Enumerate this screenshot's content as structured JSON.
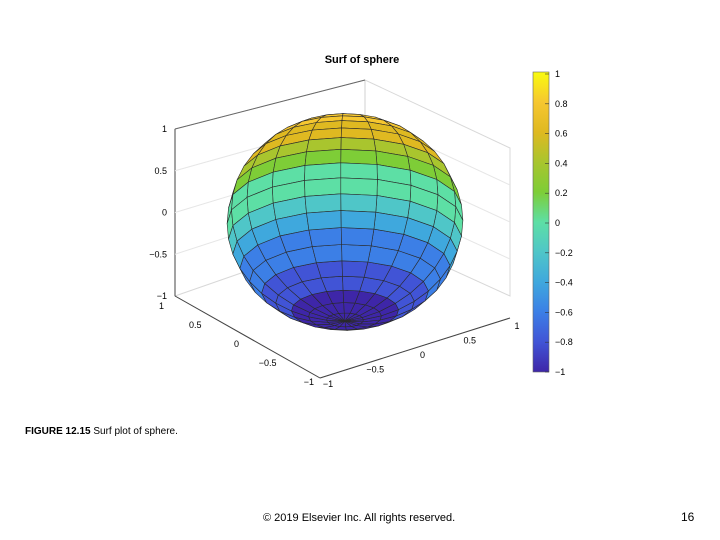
{
  "slide": {
    "caption_label": "FIGURE 12.15",
    "caption_text": "Surf plot of sphere.",
    "copyright": "© 2019 Elsevier Inc. All rights reserved.",
    "page_number": "16"
  },
  "chart_data": {
    "type": "surface",
    "title": "Surf of sphere",
    "surface": "unit sphere",
    "z_ticks": [
      "1",
      "0.5",
      "0",
      "−0.5",
      "−1"
    ],
    "y_ticks": [
      "1",
      "0.5",
      "0",
      "−0.5",
      "−1"
    ],
    "x_ticks": [
      "1",
      "0.5",
      "0",
      "−0.5",
      "−1"
    ],
    "zlim": [
      -1,
      1
    ],
    "colorbar": {
      "ticks": [
        "1",
        "0.8",
        "0.6",
        "0.4",
        "0.2",
        "0",
        "−0.2",
        "−0.4",
        "−0.6",
        "−0.8",
        "−1"
      ],
      "range": [
        -1,
        1
      ],
      "colormap": [
        "#f9fb0e",
        "#f6c730",
        "#dfb921",
        "#a9c52e",
        "#7ecd37",
        "#5ddfa5",
        "#4fc6c8",
        "#3fa8dd",
        "#3c7fe6",
        "#4154d6",
        "#3e26a8"
      ]
    },
    "grid": true
  }
}
